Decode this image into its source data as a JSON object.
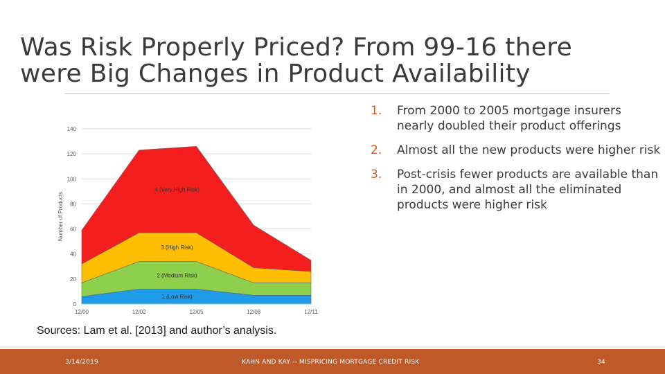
{
  "slide": {
    "title": "Was Risk Properly Priced? From 99-16 there were Big Changes in Product Availability",
    "points": [
      {
        "num": "1.",
        "text": "From 2000 to 2005 mortgage insurers nearly doubled their product offerings"
      },
      {
        "num": "2.",
        "text": "Almost all the new products were higher risk"
      },
      {
        "num": "3.",
        "text": "Post-crisis fewer products are available than in 2000, and almost all the eliminated products were higher risk"
      }
    ],
    "sources": "Sources: Lam et al. [2013] and author’s analysis."
  },
  "footer": {
    "date": "3/14/2019",
    "center": "KAHN AND KAY -- MISPRICING MORTGAGE CREDIT RISK",
    "page": "34"
  },
  "chart_data": {
    "type": "area",
    "stacked": true,
    "ylabel": "Number of Products",
    "ylim": [
      0,
      140
    ],
    "yticks": [
      0,
      20,
      40,
      60,
      80,
      100,
      120,
      140
    ],
    "x": [
      "12/00",
      "12/02",
      "12/05",
      "12/08",
      "12/11"
    ],
    "grid": true,
    "series": [
      {
        "name": "1 (Low Risk)",
        "color": "#1e9be6",
        "values": [
          6,
          12,
          12,
          7,
          7
        ]
      },
      {
        "name": "2 (Medium Risk)",
        "color": "#8ed04b",
        "values": [
          11,
          22,
          22,
          10,
          10
        ]
      },
      {
        "name": "3 (High Risk)",
        "color": "#ffbf00",
        "values": [
          15,
          23,
          23,
          12,
          9
        ]
      },
      {
        "name": "4 (Very High Risk)",
        "color": "#f51e1e",
        "values": [
          27,
          66,
          69,
          34,
          9
        ]
      }
    ]
  }
}
